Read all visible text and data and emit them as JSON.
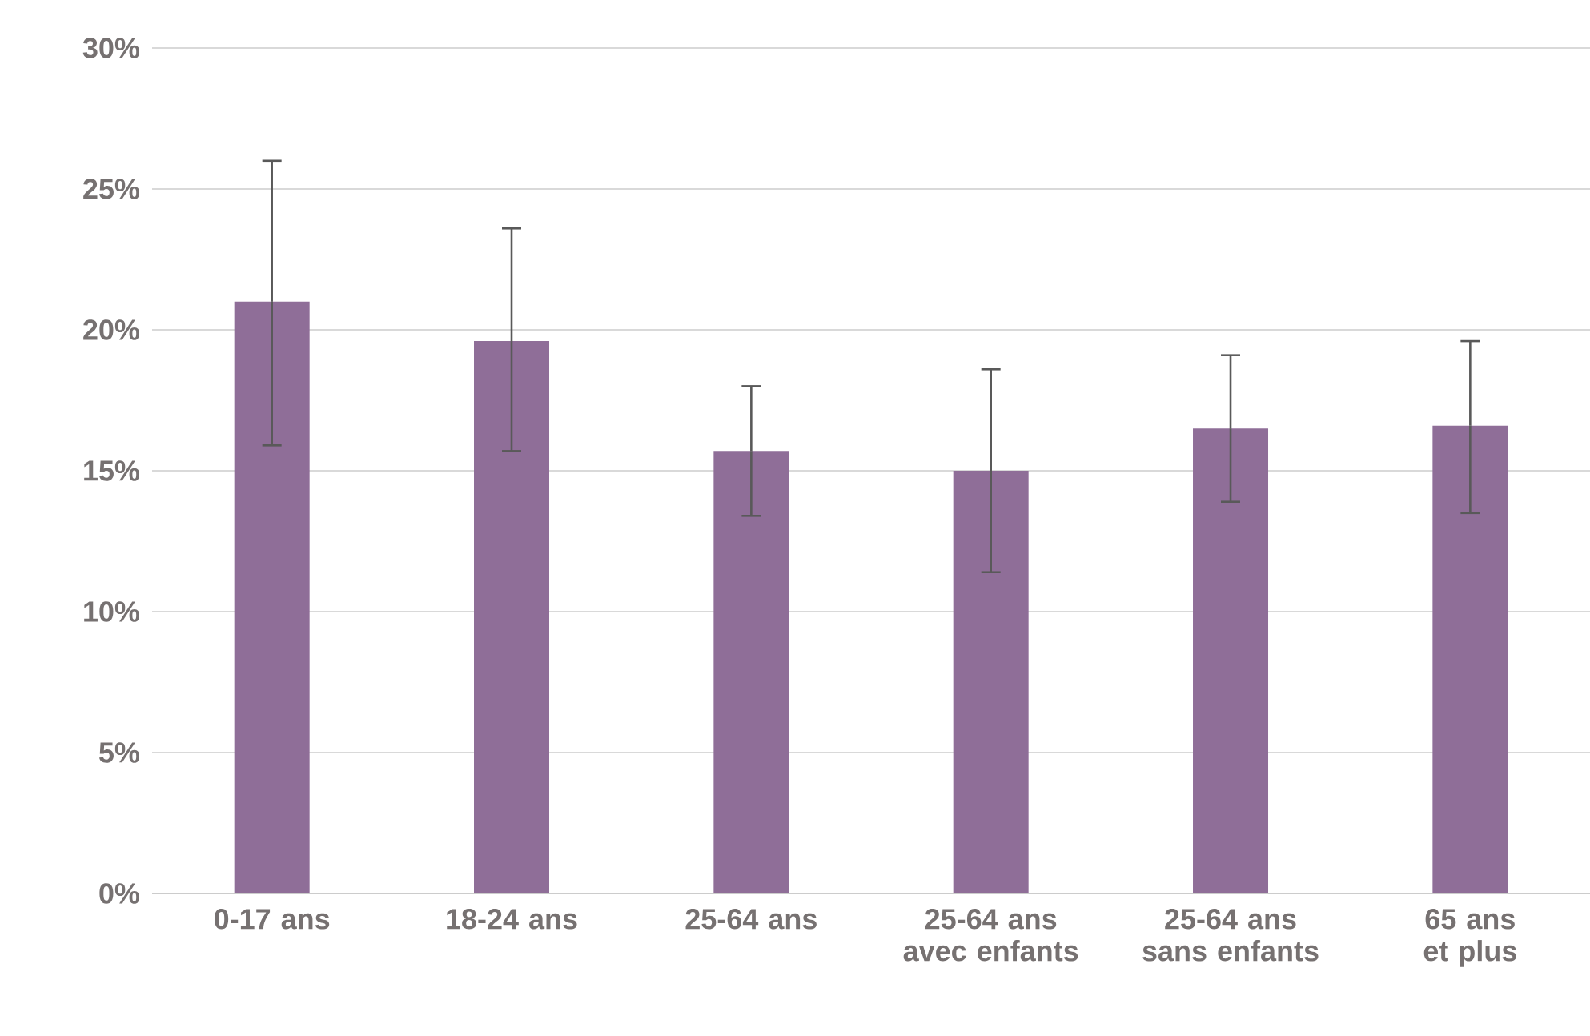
{
  "chart_data": {
    "type": "bar",
    "categories": [
      "0-17 ans",
      "18-24 ans",
      "25-64 ans",
      "25-64 ans avec enfants",
      "25-64 ans sans enfants",
      "65 ans et plus"
    ],
    "values": [
      21.0,
      19.6,
      15.7,
      15.0,
      16.5,
      16.6
    ],
    "errors": [
      [
        15.9,
        26.0
      ],
      [
        15.7,
        23.6
      ],
      [
        13.4,
        18.0
      ],
      [
        11.4,
        18.6
      ],
      [
        13.9,
        19.1
      ],
      [
        13.5,
        19.6
      ]
    ],
    "color": "#8f6e98",
    "ylim": [
      0,
      30
    ],
    "yticks": [
      {
        "value": 0,
        "label": "0%"
      },
      {
        "value": 5,
        "label": "5%"
      },
      {
        "value": 10,
        "label": "10%"
      },
      {
        "value": 15,
        "label": "15%"
      },
      {
        "value": 20,
        "label": "20%"
      },
      {
        "value": 25,
        "label": "25%"
      },
      {
        "value": 30,
        "label": "30%"
      }
    ],
    "grid": "y"
  }
}
